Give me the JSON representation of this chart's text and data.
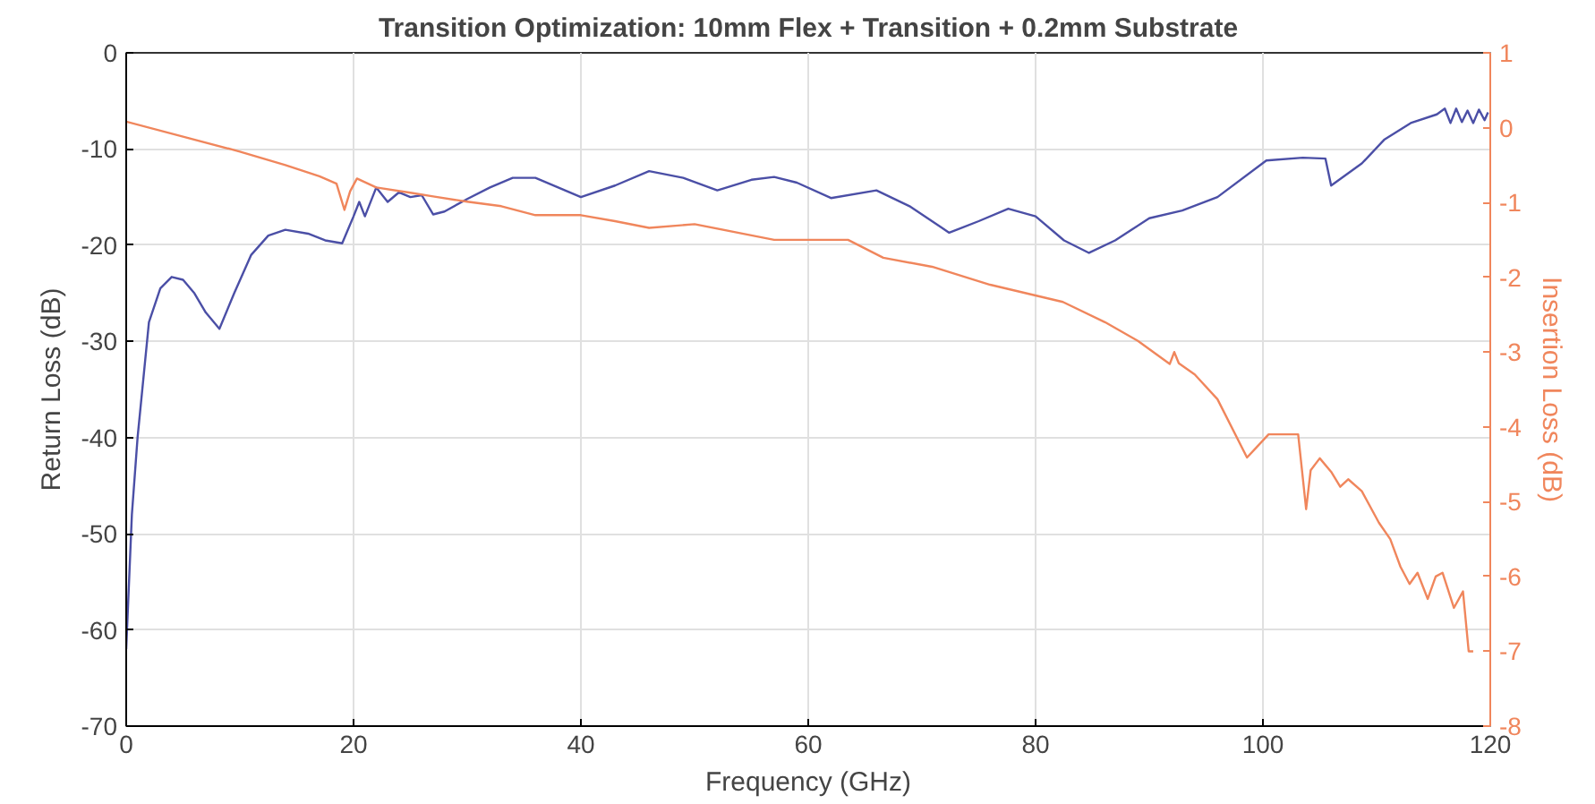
{
  "chart_data": {
    "type": "line",
    "title": "Transition Optimization: 10mm Flex + Transition + 0.2mm Substrate",
    "xlabel": "Frequency (GHz)",
    "ylabel": "Return Loss (dB)",
    "y2label": "Insertion Loss (dB)",
    "xlim": [
      0,
      120
    ],
    "xticks": [
      0,
      20,
      40,
      60,
      80,
      100,
      120
    ],
    "ylim": [
      -70,
      0
    ],
    "yticks": [
      -70,
      -60,
      -50,
      -40,
      -30,
      -20,
      -10,
      0
    ],
    "y2lim": [
      -8,
      1
    ],
    "y2ticks": [
      -8,
      -7,
      -6,
      -5,
      -4,
      -3,
      -2,
      -1,
      0,
      1
    ],
    "grid": true,
    "line_style": "solid",
    "series": [
      {
        "color": "#4b4fa6",
        "x": [
          0,
          0.5,
          1,
          2,
          3,
          4,
          5,
          6,
          7,
          8.2,
          9.5,
          11,
          12.5,
          14,
          16,
          17.5,
          19,
          20,
          20.5,
          21,
          22,
          23,
          24,
          25,
          26,
          27,
          28,
          30,
          32,
          34,
          36,
          38,
          40,
          43,
          46,
          49,
          52,
          55,
          57,
          59,
          62,
          66,
          69,
          72.4,
          75,
          77.6,
          80,
          82.5,
          84.7,
          87,
          90,
          92.9,
          96,
          100.3,
          103.5,
          105.5,
          106,
          108.7,
          110.7,
          113,
          115.3,
          116,
          116.5,
          117,
          117.5,
          118,
          118.5,
          119,
          119.5,
          119.8
        ],
        "values": [
          -62,
          -48,
          -40,
          -28,
          -24.5,
          -23.3,
          -23.6,
          -25,
          -27,
          -28.7,
          -25,
          -21,
          -19,
          -18.4,
          -18.8,
          -19.5,
          -19.8,
          -17,
          -15.5,
          -17,
          -14,
          -15.5,
          -14.5,
          -15,
          -14.8,
          -16.8,
          -16.5,
          -15.2,
          -14,
          -13,
          -13,
          -14,
          -15,
          -13.8,
          -12.3,
          -13,
          -14.3,
          -13.2,
          -12.9,
          -13.5,
          -15.1,
          -14.3,
          -16,
          -18.7,
          -17.5,
          -16.2,
          -17,
          -19.5,
          -20.8,
          -19.5,
          -17.2,
          -16.4,
          -15,
          -11.2,
          -10.9,
          -11.0,
          -13.8,
          -11.5,
          -9,
          -7.3,
          -6.4,
          -5.8,
          -7.3,
          -5.8,
          -7.2,
          -6,
          -7.3,
          -5.9,
          -7,
          -6.2
        ]
      },
      {
        "color": "#f0865c",
        "axis": "y2",
        "x": [
          0,
          5,
          10,
          14,
          17,
          18.5,
          19.2,
          19.7,
          20.3,
          22,
          25,
          27,
          30,
          33,
          36,
          40,
          43,
          46,
          50,
          54,
          57,
          60,
          63.5,
          66.6,
          70.9,
          76,
          82.4,
          86.1,
          89,
          91.8,
          92.2,
          92.6,
          94,
          96,
          98.6,
          100.5,
          103.1,
          103.8,
          104.2,
          105,
          106,
          106.8,
          107.5,
          108.7,
          110.2,
          111.2,
          112.1,
          112.9,
          113.6,
          114.5,
          115.2,
          115.8,
          116.8,
          117.6,
          118.1,
          118.5
        ],
        "values": [
          0.08,
          -0.12,
          -0.32,
          -0.5,
          -0.65,
          -0.75,
          -1.1,
          -0.85,
          -0.68,
          -0.8,
          -0.87,
          -0.92,
          -0.99,
          -1.05,
          -1.17,
          -1.17,
          -1.25,
          -1.34,
          -1.29,
          -1.41,
          -1.5,
          -1.5,
          -1.5,
          -1.74,
          -1.86,
          -2.1,
          -2.33,
          -2.6,
          -2.85,
          -3.16,
          -3.0,
          -3.15,
          -3.3,
          -3.63,
          -4.41,
          -4.1,
          -4.1,
          -5.1,
          -4.58,
          -4.42,
          -4.6,
          -4.8,
          -4.7,
          -4.86,
          -5.28,
          -5.5,
          -5.87,
          -6.1,
          -5.95,
          -6.3,
          -6.0,
          -5.95,
          -6.42,
          -6.2,
          -7.0,
          -7.0
        ]
      }
    ]
  }
}
